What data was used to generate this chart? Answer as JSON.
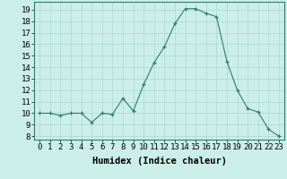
{
  "x": [
    0,
    1,
    2,
    3,
    4,
    5,
    6,
    7,
    8,
    9,
    10,
    11,
    12,
    13,
    14,
    15,
    16,
    17,
    18,
    19,
    20,
    21,
    22,
    23
  ],
  "y": [
    10,
    10,
    9.8,
    10,
    10,
    9.2,
    10,
    9.9,
    11.3,
    10.2,
    12.5,
    14.4,
    15.8,
    17.8,
    19.1,
    19.1,
    18.7,
    18.4,
    14.5,
    12.0,
    10.4,
    10.1,
    8.6,
    8.0
  ],
  "line_color": "#2e7d6e",
  "marker_color": "#2e7d6e",
  "bg_color": "#cceee8",
  "grid_color": "#aad8d0",
  "xlabel": "Humidex (Indice chaleur)",
  "ylabel_ticks": [
    8,
    9,
    10,
    11,
    12,
    13,
    14,
    15,
    16,
    17,
    18,
    19
  ],
  "ylim": [
    7.7,
    19.7
  ],
  "xlim": [
    -0.5,
    23.5
  ],
  "tick_label_fontsize": 6.5,
  "xlabel_fontsize": 7.5
}
